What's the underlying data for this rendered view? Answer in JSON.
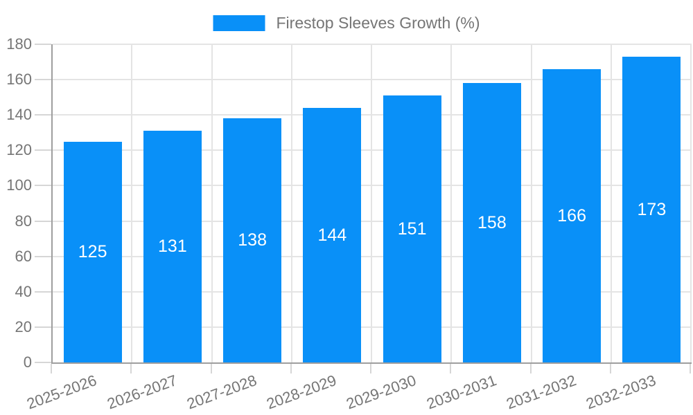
{
  "chart_data": {
    "type": "bar",
    "title": "Firestop Sleeves Growth (%)",
    "legend": {
      "position": "top",
      "label": "Firestop Sleeves Growth (%)"
    },
    "categories": [
      "2025-2026",
      "2026-2027",
      "2027-2028",
      "2028-2029",
      "2029-2030",
      "2030-2031",
      "2031-2032",
      "2032-2033"
    ],
    "series": [
      {
        "name": "Firestop Sleeves Growth (%)",
        "values": [
          125,
          131,
          138,
          144,
          151,
          158,
          166,
          173
        ]
      }
    ],
    "value_labels": [
      "125",
      "131",
      "138",
      "144",
      "151",
      "158",
      "166",
      "173"
    ],
    "xlabel": "",
    "ylabel": "",
    "ylim": [
      0,
      180
    ],
    "ytick_interval": 20,
    "yticks": [
      0,
      20,
      40,
      60,
      80,
      100,
      120,
      140,
      160,
      180
    ],
    "grid": true,
    "colors": {
      "bar": "#0990F8",
      "value_label": "#FFFFFF",
      "axis_text": "#757575",
      "grid_line": "#E4E4E4",
      "axis_line": "#9E9E9E",
      "tick": "#D6D6D6",
      "background": "#FFFFFF"
    }
  }
}
